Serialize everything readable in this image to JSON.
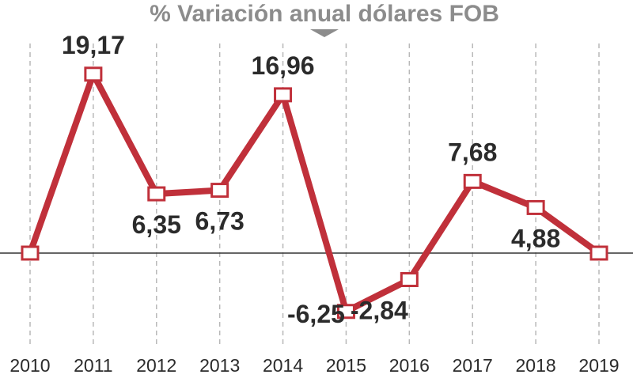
{
  "chart_data": {
    "type": "line",
    "title": "% Variación anual dólares FOB",
    "x": [
      "2010",
      "2011",
      "2012",
      "2013",
      "2014",
      "2015",
      "2016",
      "2017",
      "2018",
      "2019"
    ],
    "series": [
      {
        "values": [
          0,
          19.17,
          6.35,
          6.73,
          16.96,
          -6.25,
          -2.84,
          7.68,
          4.88,
          0
        ],
        "labels": [
          "",
          "19,17",
          "6,35",
          "6,73",
          "16,96",
          "-6,25",
          "-2,84",
          "7,68",
          "4,88",
          ""
        ]
      }
    ],
    "ylim": [
      -10,
      20
    ],
    "grid": "vertical-dashed",
    "colors": {
      "line": "#c0303a",
      "marker_fill": "#ffffff",
      "zero_line": "#333333",
      "grid": "#b8b8b8",
      "title": "#8c8c8c",
      "text": "#2b2b2b"
    }
  }
}
